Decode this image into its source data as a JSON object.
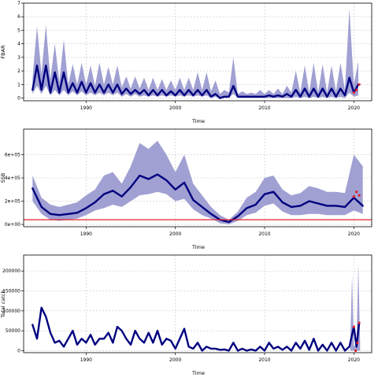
{
  "chart_data": [
    {
      "type": "line",
      "title": "",
      "xlabel": "Time",
      "ylabel": "FBAR",
      "xlim": [
        1983,
        2022
      ],
      "ylim": [
        -0.2,
        7
      ],
      "x_ticks": [
        1990,
        2000,
        2010,
        2020
      ],
      "y_ticks": [
        0,
        1,
        2,
        3,
        4,
        5,
        6,
        7
      ],
      "y_tick_labels": [
        "0",
        "1",
        "2",
        "3",
        "4",
        "5",
        "6",
        "7"
      ],
      "grid": true,
      "series": [
        {
          "kind": "band",
          "x": [
            1984.0,
            1984.5,
            1985.0,
            1985.5,
            1986.0,
            1986.5,
            1987.0,
            1987.5,
            1988.0,
            1988.5,
            1989.0,
            1989.5,
            1990.0,
            1990.5,
            1991.0,
            1991.5,
            1992.0,
            1992.5,
            1993.0,
            1993.5,
            1994.0,
            1994.5,
            1995.0,
            1995.5,
            1996.0,
            1996.5,
            1997.0,
            1997.5,
            1998.0,
            1998.5,
            1999.0,
            1999.5,
            2000.0,
            2000.5,
            2001.0,
            2001.5,
            2002.0,
            2002.5,
            2003.0,
            2003.5,
            2004.0,
            2004.5,
            2005.0,
            2005.5,
            2006.0,
            2006.5,
            2007.0,
            2007.5,
            2008.0,
            2008.5,
            2009.0,
            2009.5,
            2010.0,
            2010.5,
            2011.0,
            2011.5,
            2012.0,
            2012.5,
            2013.0,
            2013.5,
            2014.0,
            2014.5,
            2015.0,
            2015.5,
            2016.0,
            2016.5,
            2017.0,
            2017.5,
            2018.0,
            2018.5,
            2019.0,
            2019.5,
            2020.0,
            2020.5
          ],
          "upper": [
            1.5,
            5.3,
            1.8,
            5.4,
            1.4,
            4.0,
            1.2,
            4.3,
            1.0,
            2.5,
            1.0,
            2.6,
            1.0,
            2.4,
            0.9,
            2.6,
            1.0,
            2.3,
            1.0,
            2.4,
            0.8,
            1.6,
            0.7,
            1.6,
            0.7,
            1.5,
            0.6,
            1.5,
            0.6,
            1.4,
            0.6,
            1.3,
            0.6,
            1.5,
            0.6,
            1.5,
            0.6,
            1.9,
            0.6,
            1.9,
            0.5,
            1.3,
            0.3,
            0.6,
            0.4,
            3.0,
            0.3,
            0.5,
            0.3,
            0.4,
            0.3,
            0.6,
            0.3,
            0.6,
            0.3,
            0.7,
            0.3,
            0.9,
            0.4,
            2.0,
            0.4,
            2.4,
            0.4,
            2.6,
            0.4,
            2.5,
            0.4,
            2.4,
            0.5,
            2.6,
            0.6,
            6.6,
            1.0,
            2.7
          ],
          "lower": [
            0.3,
            0.9,
            0.3,
            0.9,
            0.2,
            0.6,
            0.2,
            0.6,
            0.2,
            0.5,
            0.2,
            0.5,
            0.2,
            0.4,
            0.2,
            0.4,
            0.2,
            0.4,
            0.2,
            0.4,
            0.1,
            0.3,
            0.1,
            0.3,
            0.1,
            0.2,
            0.1,
            0.2,
            0.1,
            0.2,
            0.1,
            0.2,
            0.1,
            0.2,
            0.1,
            0.2,
            0.1,
            0.2,
            0.1,
            0.2,
            0.0,
            0.1,
            0.0,
            0.0,
            0.0,
            0.3,
            0.0,
            0.0,
            0.0,
            0.0,
            0.0,
            0.0,
            0.0,
            0.0,
            0.0,
            0.0,
            0.0,
            0.0,
            0.0,
            0.1,
            0.0,
            0.1,
            0.0,
            0.1,
            0.0,
            0.1,
            0.0,
            0.1,
            0.0,
            0.1,
            0.0,
            0.4,
            0.1,
            0.2
          ]
        },
        {
          "kind": "line",
          "x": [
            1984.0,
            1984.5,
            1985.0,
            1985.5,
            1986.0,
            1986.5,
            1987.0,
            1987.5,
            1988.0,
            1988.5,
            1989.0,
            1989.5,
            1990.0,
            1990.5,
            1991.0,
            1991.5,
            1992.0,
            1992.5,
            1993.0,
            1993.5,
            1994.0,
            1994.5,
            1995.0,
            1995.5,
            1996.0,
            1996.5,
            1997.0,
            1997.5,
            1998.0,
            1998.5,
            1999.0,
            1999.5,
            2000.0,
            2000.5,
            2001.0,
            2001.5,
            2002.0,
            2002.5,
            2003.0,
            2003.5,
            2004.0,
            2004.5,
            2005.0,
            2005.5,
            2006.0,
            2006.5,
            2007.0,
            2007.5,
            2008.0,
            2008.5,
            2009.0,
            2009.5,
            2010.0,
            2010.5,
            2011.0,
            2011.5,
            2012.0,
            2012.5,
            2013.0,
            2013.5,
            2014.0,
            2014.5,
            2015.0,
            2015.5,
            2016.0,
            2016.5,
            2017.0,
            2017.5,
            2018.0,
            2018.5,
            2019.0,
            2019.5,
            2020.0,
            2020.5
          ],
          "y": [
            0.6,
            2.4,
            0.6,
            2.4,
            0.4,
            1.9,
            0.4,
            1.9,
            0.4,
            1.1,
            0.4,
            1.2,
            0.4,
            1.1,
            0.4,
            1.0,
            0.4,
            1.0,
            0.4,
            1.0,
            0.3,
            0.7,
            0.3,
            0.6,
            0.3,
            0.6,
            0.2,
            0.6,
            0.2,
            0.6,
            0.2,
            0.5,
            0.2,
            0.6,
            0.2,
            0.6,
            0.2,
            0.6,
            0.2,
            0.6,
            0.1,
            0.3,
            0.0,
            0.1,
            0.1,
            0.9,
            0.1,
            0.1,
            0.1,
            0.1,
            0.1,
            0.1,
            0.1,
            0.2,
            0.1,
            0.2,
            0.1,
            0.3,
            0.1,
            0.6,
            0.1,
            0.7,
            0.1,
            0.7,
            0.1,
            0.7,
            0.1,
            0.7,
            0.1,
            0.7,
            0.2,
            1.5,
            0.4,
            1.0
          ]
        },
        {
          "kind": "points",
          "x": [
            2020.0,
            2020.3,
            2020.6
          ],
          "y": [
            0.4,
            0.6,
            1.0
          ]
        }
      ]
    },
    {
      "type": "line",
      "title": "",
      "xlabel": "Time",
      "ylabel": "SSB",
      "xlim": [
        1983,
        2022
      ],
      "ylim": [
        -20000,
        820000
      ],
      "x_ticks": [
        1990,
        2000,
        2010,
        2020
      ],
      "y_ticks": [
        0,
        200000,
        400000,
        600000
      ],
      "y_tick_labels": [
        "0e+00",
        "2e+05",
        "4e+05",
        "6e+05"
      ],
      "grid": true,
      "reference_line": 40000,
      "series": [
        {
          "kind": "band",
          "x": [
            1984,
            1985,
            1986,
            1987,
            1988,
            1989,
            1990,
            1991,
            1992,
            1993,
            1994,
            1995,
            1996,
            1997,
            1998,
            1999,
            2000,
            2001,
            2002,
            2003,
            2004,
            2005,
            2006,
            2007,
            2008,
            2009,
            2010,
            2011,
            2012,
            2013,
            2014,
            2015,
            2016,
            2017,
            2018,
            2019,
            2020,
            2021
          ],
          "upper": [
            420000,
            230000,
            170000,
            150000,
            170000,
            190000,
            250000,
            300000,
            420000,
            450000,
            350000,
            500000,
            700000,
            650000,
            720000,
            600000,
            450000,
            600000,
            350000,
            250000,
            150000,
            80000,
            40000,
            110000,
            230000,
            280000,
            400000,
            420000,
            300000,
            250000,
            270000,
            330000,
            310000,
            280000,
            280000,
            270000,
            600000,
            500000
          ],
          "lower": [
            200000,
            90000,
            40000,
            30000,
            40000,
            50000,
            80000,
            120000,
            140000,
            170000,
            150000,
            200000,
            250000,
            260000,
            280000,
            260000,
            200000,
            220000,
            130000,
            80000,
            50000,
            10000,
            0,
            30000,
            80000,
            100000,
            160000,
            180000,
            110000,
            80000,
            80000,
            90000,
            90000,
            80000,
            80000,
            80000,
            120000,
            90000
          ]
        },
        {
          "kind": "line",
          "x": [
            1984,
            1985,
            1986,
            1987,
            1988,
            1989,
            1990,
            1991,
            1992,
            1993,
            1994,
            1995,
            1996,
            1997,
            1998,
            1999,
            2000,
            2001,
            2002,
            2003,
            2004,
            2005,
            2006,
            2007,
            2008,
            2009,
            2010,
            2011,
            2012,
            2013,
            2014,
            2015,
            2016,
            2017,
            2018,
            2019,
            2020,
            2021
          ],
          "y": [
            310000,
            150000,
            90000,
            80000,
            90000,
            100000,
            140000,
            190000,
            260000,
            290000,
            240000,
            320000,
            420000,
            390000,
            430000,
            380000,
            300000,
            360000,
            210000,
            150000,
            90000,
            40000,
            20000,
            70000,
            140000,
            170000,
            260000,
            280000,
            190000,
            150000,
            160000,
            200000,
            180000,
            160000,
            160000,
            150000,
            230000,
            160000
          ]
        },
        {
          "kind": "points",
          "x": [
            2020.0,
            2020.3,
            2020.6
          ],
          "y": [
            240000,
            280000,
            250000
          ]
        }
      ]
    },
    {
      "type": "line",
      "title": "",
      "xlabel": "Time",
      "ylabel": "Total catch",
      "xlim": [
        1983,
        2022
      ],
      "ylim": [
        -5000,
        240000
      ],
      "x_ticks": [
        1990,
        2000,
        2010,
        2020
      ],
      "y_ticks": [
        0,
        50000,
        100000,
        150000,
        200000
      ],
      "y_tick_labels": [
        "0",
        "50000",
        "100000",
        "150000",
        "200000"
      ],
      "grid": true,
      "series": [
        {
          "kind": "band",
          "x": [
            2019.6,
            2019.8,
            2020.0,
            2020.3,
            2020.5,
            2020.7
          ],
          "upper": [
            20000,
            190000,
            10000,
            20000,
            220000,
            20000
          ],
          "lower": [
            0,
            0,
            0,
            0,
            0,
            0
          ]
        },
        {
          "kind": "line",
          "x": [
            1984.0,
            1984.5,
            1985.0,
            1985.5,
            1986.0,
            1986.5,
            1987.0,
            1987.5,
            1988.0,
            1988.5,
            1989.0,
            1989.5,
            1990.0,
            1990.5,
            1991.0,
            1991.5,
            1992.0,
            1992.5,
            1993.0,
            1993.5,
            1994.0,
            1994.5,
            1995.0,
            1995.5,
            1996.0,
            1996.5,
            1997.0,
            1997.5,
            1998.0,
            1998.5,
            1999.0,
            1999.5,
            2000.0,
            2000.5,
            2001.0,
            2001.5,
            2002.0,
            2002.5,
            2003.0,
            2003.5,
            2004.0,
            2004.5,
            2005.0,
            2005.5,
            2006.0,
            2006.5,
            2007.0,
            2007.5,
            2008.0,
            2008.5,
            2009.0,
            2009.5,
            2010.0,
            2010.5,
            2011.0,
            2011.5,
            2012.0,
            2012.5,
            2013.0,
            2013.5,
            2014.0,
            2014.5,
            2015.0,
            2015.5,
            2016.0,
            2016.5,
            2017.0,
            2017.5,
            2018.0,
            2018.5,
            2019.0,
            2019.5,
            2020.0,
            2020.3,
            2020.6
          ],
          "y": [
            65000,
            30000,
            108000,
            85000,
            45000,
            20000,
            25000,
            10000,
            30000,
            50000,
            15000,
            30000,
            20000,
            40000,
            15000,
            30000,
            30000,
            45000,
            20000,
            60000,
            50000,
            30000,
            15000,
            50000,
            30000,
            20000,
            45000,
            20000,
            50000,
            15000,
            30000,
            25000,
            5000,
            30000,
            55000,
            10000,
            5000,
            20000,
            0,
            10000,
            5000,
            5000,
            2000,
            3000,
            0,
            20000,
            0,
            5000,
            0,
            3000,
            0,
            10000,
            0,
            20000,
            5000,
            10000,
            2000,
            10000,
            0,
            20000,
            5000,
            25000,
            2000,
            30000,
            0,
            15000,
            0,
            20000,
            0,
            20000,
            0,
            10000,
            60000,
            10000,
            70000
          ]
        },
        {
          "kind": "points",
          "x": [
            2020.0,
            2020.2,
            2020.4,
            2020.6
          ],
          "y": [
            60000,
            0,
            20000,
            70000
          ]
        }
      ]
    }
  ]
}
